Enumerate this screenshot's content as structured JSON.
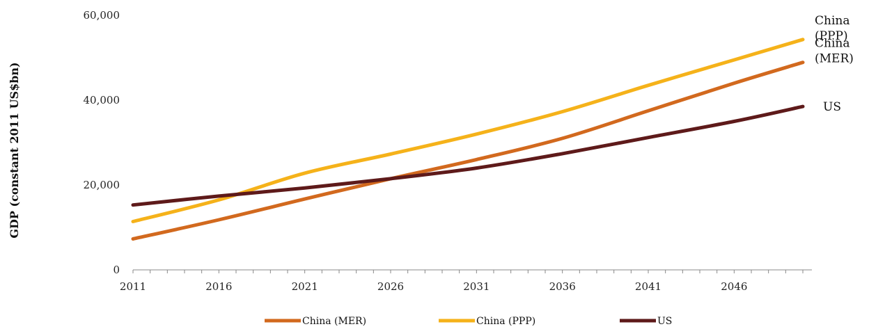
{
  "chart_data": {
    "type": "line",
    "ylabel": "GDP (constant 2011 US$bn)",
    "xlabel": "",
    "xlim": [
      2011,
      2050
    ],
    "ylim": [
      0,
      60000
    ],
    "grid": false,
    "legend_position": "bottom",
    "y_ticks": [
      {
        "value": 0,
        "label": "0"
      },
      {
        "value": 20000,
        "label": "20,000"
      },
      {
        "value": 40000,
        "label": "40,000"
      },
      {
        "value": 60000,
        "label": "60,000"
      }
    ],
    "x_tick_labels": [
      {
        "value": 2011,
        "label": "2011"
      },
      {
        "value": 2016,
        "label": "2016"
      },
      {
        "value": 2021,
        "label": "2021"
      },
      {
        "value": 2026,
        "label": "2026"
      },
      {
        "value": 2031,
        "label": "2031"
      },
      {
        "value": 2036,
        "label": "2036"
      },
      {
        "value": 2041,
        "label": "2041"
      },
      {
        "value": 2046,
        "label": "2046"
      }
    ],
    "series": [
      {
        "name": "China (MER)",
        "end_label": [
          "China",
          "(MER)"
        ],
        "color": "#d2691e",
        "x": [
          2011,
          2016,
          2021,
          2026,
          2031,
          2036,
          2041,
          2046,
          2050
        ],
        "values": [
          7300,
          11800,
          16700,
          21500,
          26000,
          31000,
          37500,
          44000,
          48900
        ]
      },
      {
        "name": "China (PPP)",
        "end_label": [
          "China",
          "(PPP)"
        ],
        "color": "#f5b21a",
        "x": [
          2011,
          2016,
          2021,
          2026,
          2031,
          2036,
          2041,
          2046,
          2050
        ],
        "values": [
          11400,
          16500,
          22800,
          27300,
          32000,
          37300,
          43500,
          49500,
          54300
        ]
      },
      {
        "name": "US",
        "end_label": [
          "US"
        ],
        "color": "#5e1a1a",
        "x": [
          2011,
          2016,
          2021,
          2026,
          2031,
          2036,
          2041,
          2046,
          2050
        ],
        "values": [
          15300,
          17400,
          19300,
          21500,
          24000,
          27400,
          31200,
          35000,
          38500
        ]
      }
    ]
  }
}
